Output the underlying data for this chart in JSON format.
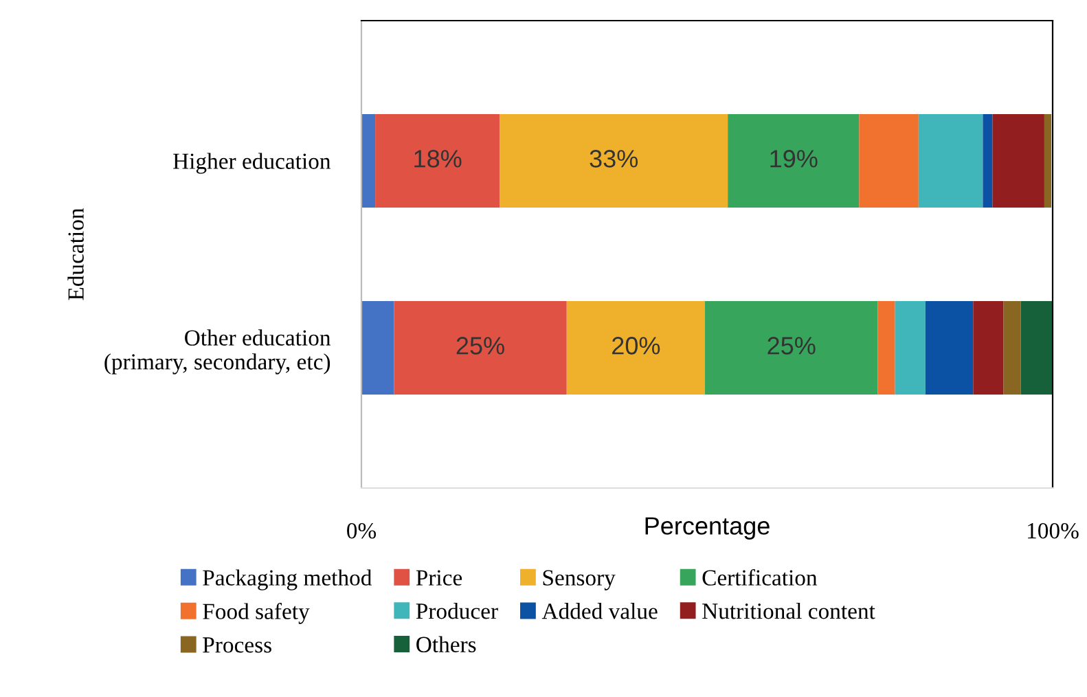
{
  "chart_data": {
    "type": "bar",
    "orientation": "horizontal",
    "stacked": true,
    "xlabel": "Percentage",
    "ylabel": "Education",
    "categories": [
      "Higher education",
      "Other education\n(primary, secondary, etc)"
    ],
    "xlim": [
      0,
      100
    ],
    "xticks": [
      {
        "value": 0,
        "label": "0%"
      },
      {
        "value": 100,
        "label": "100%"
      }
    ],
    "grid": false,
    "legend": "bottom",
    "series": [
      {
        "name": "Packaging method",
        "color": "#4472c4",
        "values": [
          2,
          4.7
        ]
      },
      {
        "name": "Price",
        "color": "#e05244",
        "values": [
          18,
          25
        ],
        "value_labels": [
          "18%",
          "25%"
        ]
      },
      {
        "name": "Sensory",
        "color": "#efb12c",
        "values": [
          33,
          20
        ],
        "value_labels": [
          "33%",
          "20%"
        ]
      },
      {
        "name": "Certification",
        "color": "#38a55c",
        "values": [
          19,
          25
        ],
        "value_labels": [
          "19%",
          "25%"
        ]
      },
      {
        "name": "Food safety",
        "color": "#f1722e",
        "values": [
          8.6,
          2.5
        ]
      },
      {
        "name": "Producer",
        "color": "#40b5ba",
        "values": [
          9.3,
          4.4
        ]
      },
      {
        "name": "Added value",
        "color": "#0b52a4",
        "values": [
          1.4,
          6.9
        ]
      },
      {
        "name": "Nutritional content",
        "color": "#921e20",
        "values": [
          7.5,
          4.4
        ]
      },
      {
        "name": "Process",
        "color": "#8a6623",
        "values": [
          1.0,
          2.5
        ]
      },
      {
        "name": "Others",
        "color": "#16613a",
        "values": [
          null,
          4.6
        ]
      }
    ]
  }
}
